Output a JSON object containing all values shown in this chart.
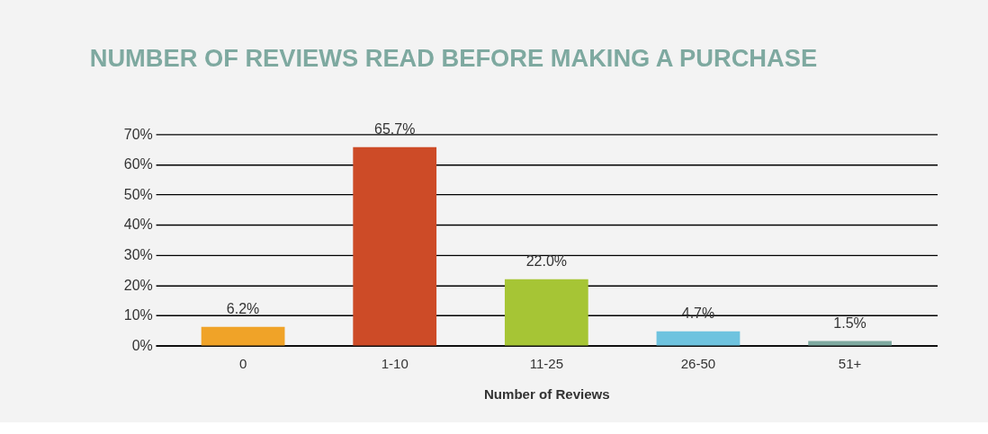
{
  "chart_data": {
    "type": "bar",
    "title": "NUMBER OF REVIEWS READ BEFORE MAKING A PURCHASE",
    "xlabel": "Number of Reviews",
    "categories": [
      "0",
      "1-10",
      "11-25",
      "26-50",
      "51+"
    ],
    "values": [
      6.2,
      65.7,
      22.0,
      4.7,
      1.5
    ],
    "colors": [
      "#f0a328",
      "#cd4b27",
      "#a6c535",
      "#6ec3df",
      "#7ea9a0"
    ],
    "value_labels": [
      "6.2%",
      "65.7%",
      "22.0%",
      "4.7%",
      "1.5%"
    ],
    "ylim": [
      0,
      70
    ],
    "yticks": [
      {
        "value": 0,
        "label": "0%"
      },
      {
        "value": 10,
        "label": "10%"
      },
      {
        "value": 20,
        "label": "20%"
      },
      {
        "value": 30,
        "label": "30%"
      },
      {
        "value": 40,
        "label": "40%"
      },
      {
        "value": 50,
        "label": "50%"
      },
      {
        "value": 60,
        "label": "60%"
      },
      {
        "value": 70,
        "label": "70%"
      }
    ],
    "grid": "y"
  }
}
